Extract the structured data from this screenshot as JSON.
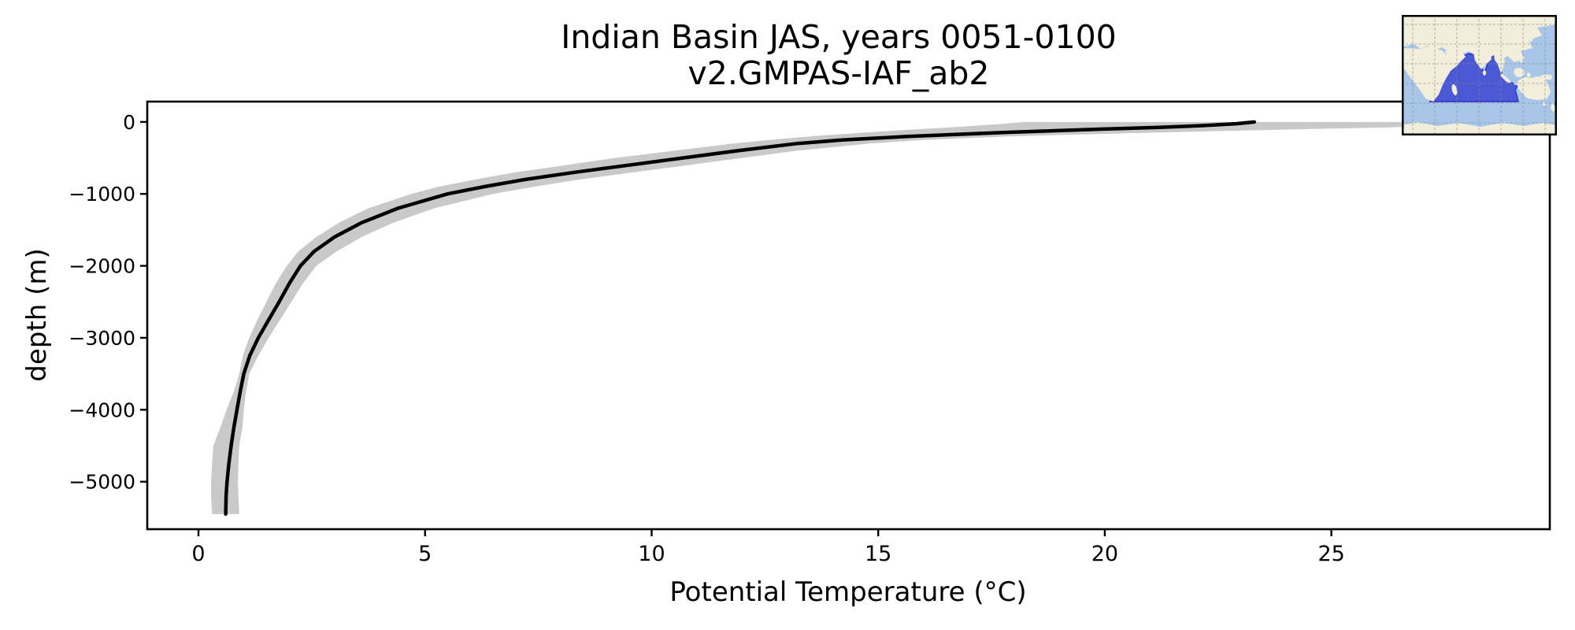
{
  "title": {
    "line1": "Indian Basin JAS, years 0051-0100",
    "line2": "v2.GMPAS-IAF_ab2"
  },
  "colors": {
    "profile_line": "#000000",
    "spread_band": "#c9c9c9",
    "axis": "#000000",
    "inset_ocean": "#a7c6e8",
    "inset_land": "#f2eedb",
    "inset_basin_fill": "#4b58d4",
    "inset_basin_edge": "#2e35c8",
    "inset_grid": "#8a8a8a",
    "inset_border": "#000000"
  },
  "chart_data": {
    "type": "line",
    "title": "Indian Basin JAS, years 0051-0100",
    "subtitle": "v2.GMPAS-IAF_ab2",
    "xlabel": "Potential Temperature (°C)",
    "ylabel": "depth (m)",
    "xlim": [
      -1.13,
      29.82
    ],
    "ylim": [
      -5660,
      283
    ],
    "grid": false,
    "legend": null,
    "x_ticks": {
      "values": [
        0,
        5,
        10,
        15,
        20,
        25
      ],
      "labels": [
        "0",
        "5",
        "10",
        "15",
        "20",
        "25"
      ]
    },
    "y_ticks": {
      "values": [
        0,
        -1000,
        -2000,
        -3000,
        -4000,
        -5000
      ],
      "labels": [
        "0",
        "−1000",
        "−2000",
        "−3000",
        "−4000",
        "−5000"
      ]
    },
    "depth_m": [
      0,
      -25,
      -50,
      -75,
      -100,
      -150,
      -200,
      -250,
      -300,
      -400,
      -500,
      -600,
      -700,
      -800,
      -900,
      -1000,
      -1200,
      -1400,
      -1600,
      -1800,
      -2000,
      -2250,
      -2500,
      -2750,
      -3000,
      -3250,
      -3500,
      -3750,
      -4000,
      -4250,
      -4500,
      -4750,
      -5000,
      -5200,
      -5450
    ],
    "series": [
      {
        "name": "mean potential temperature profile",
        "style": "solid",
        "temperature_c": [
          23.3,
          22.9,
          22.2,
          21.2,
          19.9,
          17.6,
          15.7,
          14.2,
          13.2,
          11.9,
          10.7,
          9.5,
          8.3,
          7.2,
          6.3,
          5.5,
          4.4,
          3.6,
          3.0,
          2.55,
          2.25,
          2.0,
          1.78,
          1.55,
          1.32,
          1.13,
          1.0,
          0.92,
          0.85,
          0.78,
          0.72,
          0.67,
          0.63,
          0.61,
          0.6
        ]
      }
    ],
    "band": {
      "name": "interannual spread (min-max envelope)",
      "t_min": [
        18.2,
        17.8,
        17.2,
        16.6,
        15.9,
        14.6,
        13.5,
        12.6,
        11.8,
        10.5,
        9.2,
        8.1,
        7.0,
        6.1,
        5.3,
        4.7,
        3.75,
        3.1,
        2.6,
        2.2,
        1.95,
        1.7,
        1.5,
        1.3,
        1.12,
        0.98,
        0.9,
        0.78,
        0.62,
        0.48,
        0.33,
        0.3,
        0.28,
        0.28,
        0.3
      ],
      "t_max": [
        28.6,
        28.3,
        27.6,
        26.3,
        24.4,
        20.9,
        17.9,
        16.0,
        14.8,
        13.2,
        12.0,
        10.8,
        9.6,
        8.4,
        7.4,
        6.5,
        5.2,
        4.3,
        3.6,
        3.05,
        2.6,
        2.3,
        2.05,
        1.8,
        1.55,
        1.32,
        1.12,
        1.05,
        1.0,
        0.97,
        0.9,
        0.88,
        0.87,
        0.88,
        0.9
      ]
    }
  },
  "inset_map": {
    "name": "Indian Basin region highlight",
    "highlighted_region": "Indian Ocean basin"
  }
}
